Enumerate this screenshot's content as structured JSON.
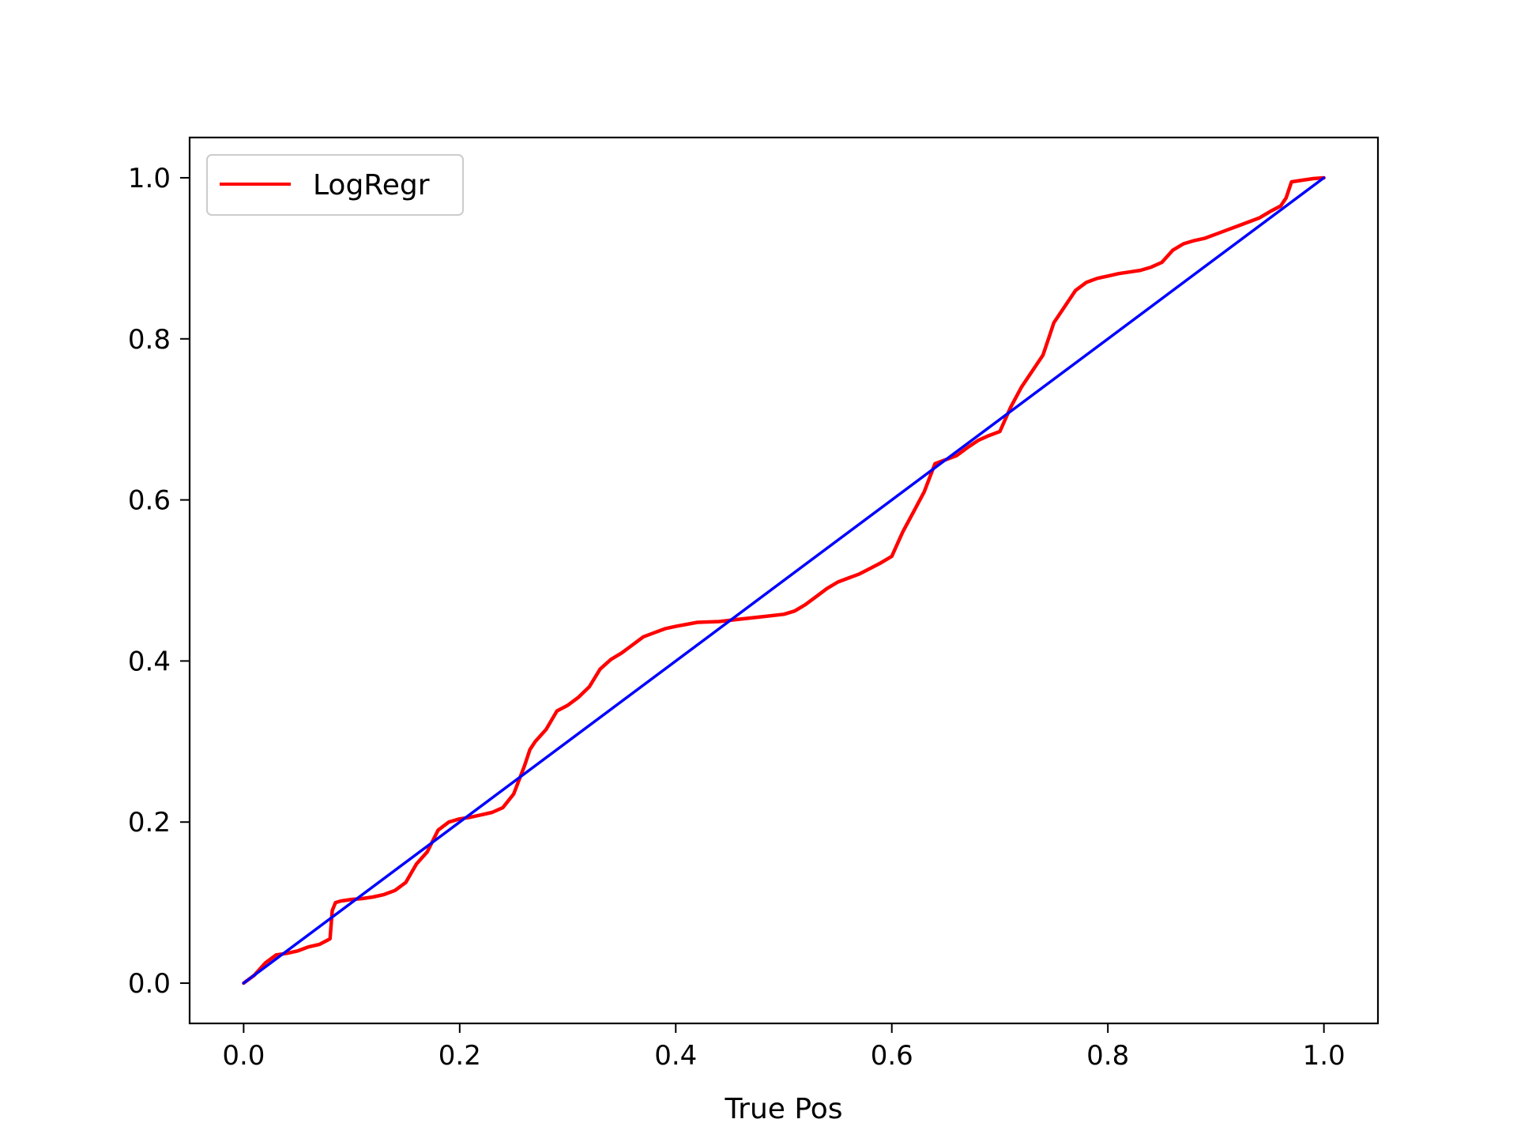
{
  "chart_data": {
    "type": "line",
    "title": "",
    "xlabel": "True Pos",
    "ylabel": "",
    "xlim": [
      -0.05,
      1.05
    ],
    "ylim": [
      -0.05,
      1.05
    ],
    "xticks": [
      "0.0",
      "0.2",
      "0.4",
      "0.6",
      "0.8",
      "1.0"
    ],
    "yticks": [
      "0.0",
      "0.2",
      "0.4",
      "0.6",
      "0.8",
      "1.0"
    ],
    "grid": false,
    "legend_position": "top-left",
    "series": [
      {
        "name": "LogRegr",
        "color": "#ff0000",
        "x": [
          0.0,
          0.01,
          0.02,
          0.03,
          0.04,
          0.05,
          0.06,
          0.07,
          0.08,
          0.082,
          0.085,
          0.09,
          0.1,
          0.11,
          0.12,
          0.13,
          0.14,
          0.15,
          0.16,
          0.17,
          0.18,
          0.19,
          0.2,
          0.21,
          0.22,
          0.23,
          0.24,
          0.25,
          0.26,
          0.265,
          0.27,
          0.28,
          0.29,
          0.3,
          0.31,
          0.32,
          0.33,
          0.34,
          0.35,
          0.36,
          0.37,
          0.38,
          0.39,
          0.4,
          0.42,
          0.44,
          0.46,
          0.48,
          0.5,
          0.51,
          0.52,
          0.53,
          0.54,
          0.55,
          0.56,
          0.57,
          0.58,
          0.59,
          0.6,
          0.605,
          0.61,
          0.62,
          0.63,
          0.64,
          0.65,
          0.66,
          0.67,
          0.68,
          0.69,
          0.7,
          0.71,
          0.72,
          0.73,
          0.74,
          0.745,
          0.75,
          0.76,
          0.77,
          0.78,
          0.79,
          0.8,
          0.81,
          0.82,
          0.83,
          0.84,
          0.85,
          0.86,
          0.87,
          0.88,
          0.89,
          0.9,
          0.91,
          0.92,
          0.93,
          0.94,
          0.95,
          0.96,
          0.965,
          0.97,
          0.98,
          0.99,
          1.0
        ],
        "y": [
          0.0,
          0.01,
          0.025,
          0.035,
          0.037,
          0.04,
          0.045,
          0.048,
          0.055,
          0.09,
          0.1,
          0.102,
          0.104,
          0.105,
          0.107,
          0.11,
          0.115,
          0.125,
          0.148,
          0.163,
          0.19,
          0.2,
          0.204,
          0.206,
          0.209,
          0.212,
          0.218,
          0.235,
          0.27,
          0.29,
          0.3,
          0.315,
          0.338,
          0.345,
          0.355,
          0.368,
          0.39,
          0.402,
          0.41,
          0.42,
          0.43,
          0.435,
          0.44,
          0.443,
          0.448,
          0.449,
          0.452,
          0.455,
          0.458,
          0.462,
          0.47,
          0.48,
          0.49,
          0.498,
          0.503,
          0.508,
          0.515,
          0.522,
          0.53,
          0.545,
          0.56,
          0.585,
          0.61,
          0.645,
          0.65,
          0.655,
          0.665,
          0.674,
          0.68,
          0.685,
          0.715,
          0.74,
          0.76,
          0.78,
          0.8,
          0.82,
          0.84,
          0.86,
          0.87,
          0.875,
          0.878,
          0.881,
          0.883,
          0.885,
          0.889,
          0.895,
          0.91,
          0.918,
          0.922,
          0.925,
          0.93,
          0.935,
          0.94,
          0.945,
          0.95,
          0.958,
          0.965,
          0.975,
          0.995,
          0.997,
          0.999,
          1.0
        ]
      },
      {
        "color": "#0000ff",
        "x": [
          0.0,
          1.0
        ],
        "y": [
          0.0,
          1.0
        ]
      }
    ]
  }
}
